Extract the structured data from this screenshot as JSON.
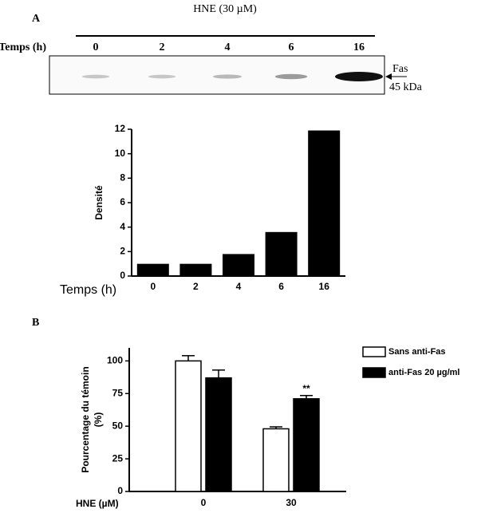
{
  "panel_labels": [
    "A",
    "B"
  ],
  "blot": {
    "title": "HNE (30 µM)",
    "row_label": "Temps (h)",
    "lanes": [
      "0",
      "2",
      "4",
      "6",
      "16"
    ],
    "band_label": "Fas",
    "size_label": "45 kDa"
  },
  "chart_data": [
    {
      "type": "bar",
      "categories": [
        "0",
        "2",
        "4",
        "6",
        "16"
      ],
      "values": [
        1.0,
        1.0,
        1.8,
        3.6,
        11.9
      ],
      "color": "#000000",
      "ylabel": "Densité",
      "xlabel": "Temps (h)",
      "ylim": [
        0,
        12
      ],
      "yticks": [
        0,
        2,
        4,
        6,
        8,
        10,
        12
      ]
    },
    {
      "type": "grouped_bar",
      "categories": [
        "0",
        "30"
      ],
      "xlabel": "HNE (µM)",
      "ylabel": [
        "Pourcentage du témoin",
        "(%)"
      ],
      "ylim": [
        0,
        110
      ],
      "yticks": [
        0,
        25,
        50,
        75,
        100
      ],
      "legend": "right",
      "series": [
        {
          "name": "Sans anti-Fas",
          "color": "#ffffff",
          "values": [
            100,
            48
          ],
          "errors": [
            4,
            1.5
          ]
        },
        {
          "name": "anti-Fas 20 µg/ml",
          "color": "#000000",
          "values": [
            87,
            71
          ],
          "errors": [
            6,
            2.5
          ]
        }
      ],
      "annotations": [
        {
          "text": "**",
          "series": 1,
          "index": 1
        }
      ]
    }
  ]
}
